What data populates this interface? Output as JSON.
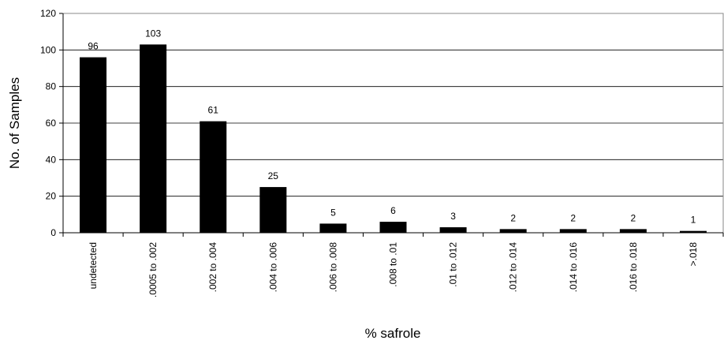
{
  "chart_data": {
    "type": "bar",
    "x_label": "% safrole",
    "y_label": "No. of Samples",
    "categories": [
      "undetected",
      ".0005 to .002",
      ".002 to .004",
      ".004 to .006",
      ".006 to .008",
      ".008 to .01",
      ".01 to .012",
      ".012 to .014",
      ".014 to .016",
      ".016 to .018",
      ">.018"
    ],
    "values": [
      96,
      103,
      61,
      25,
      5,
      6,
      3,
      2,
      2,
      2,
      1
    ],
    "color": "#000000",
    "ylim": [
      0,
      120
    ],
    "yticks": [
      0,
      20,
      40,
      60,
      80,
      100,
      120
    ],
    "grid": true
  }
}
